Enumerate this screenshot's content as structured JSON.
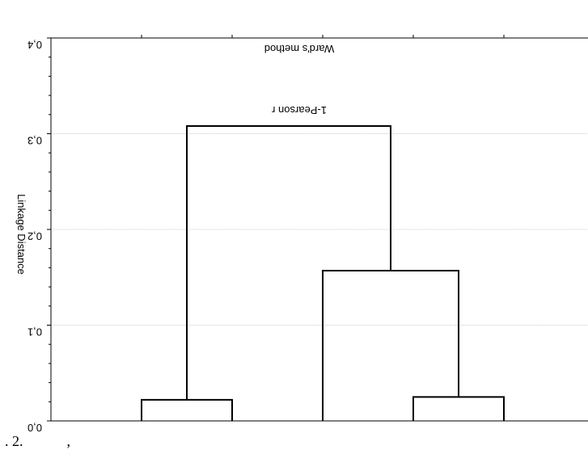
{
  "chart_data": {
    "type": "dendrogram",
    "title": "Ward's method",
    "subtitle": "1-Pearson r",
    "ylabel": "Linkage Distance",
    "ylim": [
      0.0,
      0.4
    ],
    "yticks": [
      "0,0",
      "0,1",
      "0,2",
      "0,3",
      "0,4"
    ],
    "tick_values": [
      0.0,
      0.1,
      0.2,
      0.3,
      0.4
    ],
    "grid": true,
    "merges": [
      {
        "left": [
          1,
          0.0
        ],
        "right": [
          2,
          0.0
        ],
        "height": 0.022
      },
      {
        "left": [
          4,
          0.0
        ],
        "right": [
          5,
          0.0
        ],
        "height": 0.025
      },
      {
        "left": [
          3,
          0.0
        ],
        "right": [
          4.5,
          0.025
        ],
        "height": 0.157
      },
      {
        "left": [
          1.5,
          0.022
        ],
        "right": [
          3.75,
          0.157
        ],
        "height": 0.308
      }
    ]
  },
  "caption": ". 2.            ,"
}
